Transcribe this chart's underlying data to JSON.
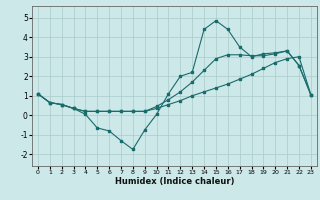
{
  "xlabel": "Humidex (Indice chaleur)",
  "xlim": [
    -0.5,
    23.5
  ],
  "ylim": [
    -2.6,
    5.6
  ],
  "yticks": [
    -2,
    -1,
    0,
    1,
    2,
    3,
    4,
    5
  ],
  "xticks": [
    0,
    1,
    2,
    3,
    4,
    5,
    6,
    7,
    8,
    9,
    10,
    11,
    12,
    13,
    14,
    15,
    16,
    17,
    18,
    19,
    20,
    21,
    22,
    23
  ],
  "bg_color": "#cce8e8",
  "grid_color": "#aacccc",
  "line_color": "#1a6b6b",
  "line1_x": [
    0,
    1,
    2,
    3,
    4,
    5,
    6,
    7,
    8,
    9,
    10,
    11,
    12,
    13,
    14,
    15,
    16,
    17,
    18,
    19,
    20,
    21,
    22,
    23
  ],
  "line1_y": [
    1.1,
    0.65,
    0.55,
    0.35,
    0.05,
    -0.65,
    -0.8,
    -1.3,
    -1.75,
    -0.75,
    0.05,
    1.1,
    2.0,
    2.2,
    4.4,
    4.85,
    4.4,
    3.5,
    3.0,
    3.15,
    3.2,
    3.3,
    2.55,
    1.05
  ],
  "line2_x": [
    0,
    1,
    2,
    3,
    4,
    5,
    6,
    7,
    8,
    9,
    10,
    11,
    12,
    13,
    14,
    15,
    16,
    17,
    18,
    19,
    20,
    21,
    22,
    23
  ],
  "line2_y": [
    1.1,
    0.65,
    0.55,
    0.35,
    0.2,
    0.2,
    0.2,
    0.2,
    0.2,
    0.2,
    0.35,
    0.55,
    0.75,
    1.0,
    1.2,
    1.4,
    1.6,
    1.85,
    2.1,
    2.4,
    2.7,
    2.9,
    3.0,
    1.05
  ],
  "line3_x": [
    0,
    1,
    2,
    3,
    4,
    5,
    6,
    7,
    8,
    9,
    10,
    11,
    12,
    13,
    14,
    15,
    16,
    17,
    18,
    19,
    20,
    21,
    22,
    23
  ],
  "line3_y": [
    1.1,
    0.65,
    0.55,
    0.35,
    0.2,
    0.2,
    0.2,
    0.2,
    0.2,
    0.2,
    0.45,
    0.8,
    1.2,
    1.7,
    2.3,
    2.9,
    3.1,
    3.1,
    3.05,
    3.05,
    3.15,
    3.3,
    2.55,
    1.05
  ]
}
